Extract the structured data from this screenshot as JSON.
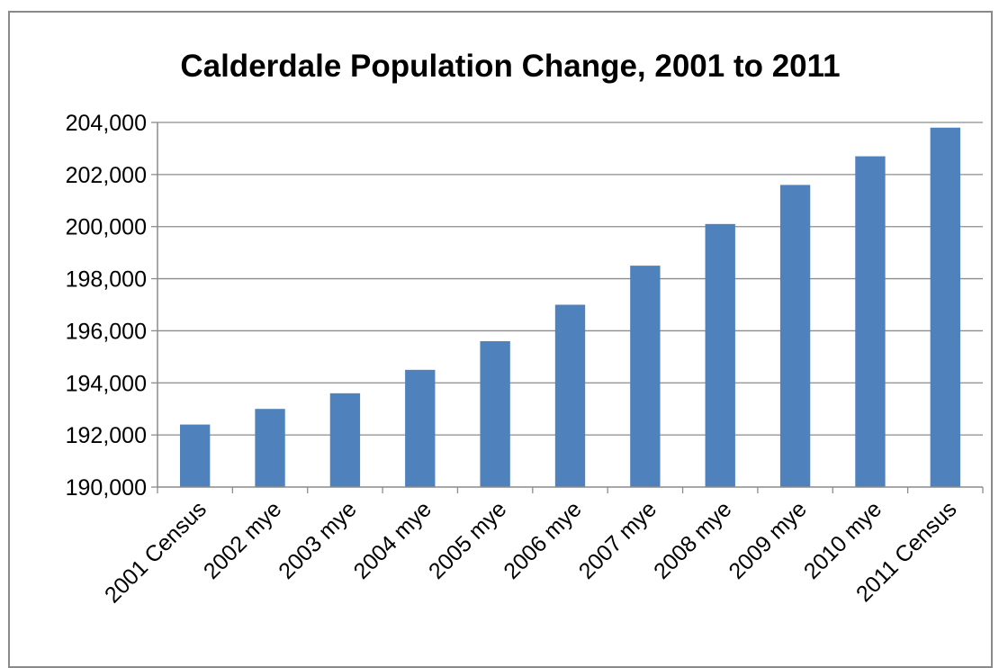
{
  "chart_data": {
    "type": "bar",
    "title": "Calderdale Population Change, 2001 to 2011",
    "xlabel": "",
    "ylabel": "",
    "categories": [
      "2001 Census",
      "2002 mye",
      "2003 mye",
      "2004 mye",
      "2005 mye",
      "2006 mye",
      "2007 mye",
      "2008 mye",
      "2009 mye",
      "2010 mye",
      "2011 Census"
    ],
    "values": [
      192400,
      193000,
      193600,
      194500,
      195600,
      197000,
      198500,
      200100,
      201600,
      202700,
      203800
    ],
    "ylim": [
      190000,
      204000
    ],
    "yticks": [
      "190,000",
      "192,000",
      "194,000",
      "196,000",
      "198,000",
      "200,000",
      "202,000",
      "204,000"
    ],
    "grid": true,
    "legend": "none",
    "bar_color": "#4f81bd"
  }
}
